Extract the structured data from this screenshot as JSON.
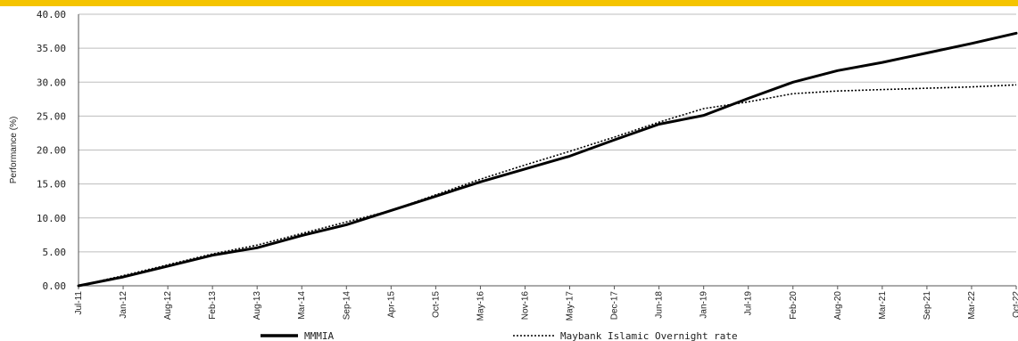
{
  "brand": {
    "accent": "#F5C400"
  },
  "chart_data": {
    "type": "line",
    "title": "",
    "ylabel": "Performance (%)",
    "xlabel": "",
    "ylim": [
      0,
      40
    ],
    "y_ticks": [
      "0.00",
      "5.00",
      "10.00",
      "15.00",
      "20.00",
      "25.00",
      "30.00",
      "35.00",
      "40.00"
    ],
    "categories": [
      "Jul-11",
      "Jan-12",
      "Aug-12",
      "Feb-13",
      "Aug-13",
      "Mar-14",
      "Sep-14",
      "Apr-15",
      "Oct-15",
      "May-16",
      "Nov-16",
      "May-17",
      "Dec-17",
      "Jun-18",
      "Jan-19",
      "Jul-19",
      "Feb-20",
      "Aug-20",
      "Mar-21",
      "Sep-21",
      "Mar-22",
      "Oct-22"
    ],
    "grid": true,
    "legend_position": "bottom",
    "series": [
      {
        "name": "MMMIA",
        "style": "solid",
        "color": "#000000",
        "values": [
          0.0,
          1.3,
          2.9,
          4.5,
          5.6,
          7.4,
          9.0,
          11.1,
          13.2,
          15.3,
          17.2,
          19.1,
          21.5,
          23.8,
          25.1,
          27.6,
          30.0,
          31.7,
          32.9,
          34.3,
          35.7,
          37.2
        ]
      },
      {
        "name": "Maybank Islamic Overnight rate",
        "style": "dotted",
        "color": "#000000",
        "values": [
          0.0,
          1.5,
          3.1,
          4.7,
          6.0,
          7.7,
          9.4,
          11.1,
          13.4,
          15.7,
          17.8,
          19.8,
          21.9,
          24.1,
          26.1,
          27.1,
          28.3,
          28.7,
          28.9,
          29.1,
          29.3,
          29.6
        ]
      }
    ]
  }
}
